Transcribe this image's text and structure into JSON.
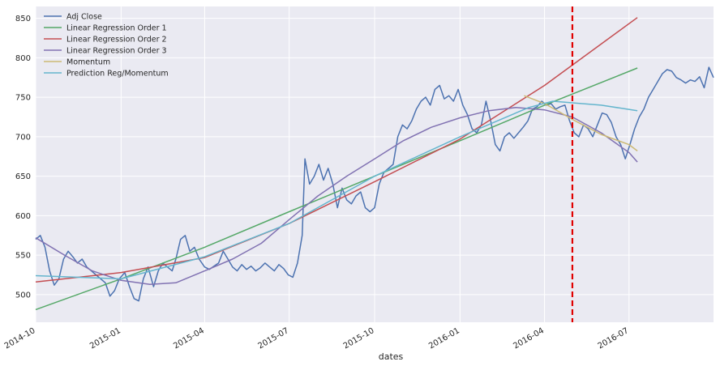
{
  "chart_data": {
    "type": "line",
    "title": "",
    "xlabel": "dates",
    "ylabel": "",
    "grid": true,
    "legend_position": "top-left",
    "xlim": [
      "2014-10-01",
      "2016-09-30"
    ],
    "ylim": [
      465,
      865
    ],
    "x_ticks": [
      {
        "date": "2014-10-01",
        "label": "2014-10"
      },
      {
        "date": "2015-01-01",
        "label": "2015-01"
      },
      {
        "date": "2015-04-01",
        "label": "2015-04"
      },
      {
        "date": "2015-07-01",
        "label": "2015-07"
      },
      {
        "date": "2015-10-01",
        "label": "2015-10"
      },
      {
        "date": "2016-01-01",
        "label": "2016-01"
      },
      {
        "date": "2016-04-01",
        "label": "2016-04"
      },
      {
        "date": "2016-07-01",
        "label": "2016-07"
      }
    ],
    "y_ticks": [
      500,
      550,
      600,
      650,
      700,
      750,
      800,
      850
    ],
    "vertical_line": {
      "date": "2016-05-01",
      "color": "#e00000",
      "style": "dashed"
    },
    "series": [
      {
        "name": "Adj Close",
        "color": "#4c72b0",
        "points": [
          [
            "2014-10-01",
            570
          ],
          [
            "2014-10-06",
            575
          ],
          [
            "2014-10-11",
            560
          ],
          [
            "2014-10-16",
            530
          ],
          [
            "2014-10-21",
            512
          ],
          [
            "2014-10-26",
            520
          ],
          [
            "2014-10-31",
            545
          ],
          [
            "2014-11-05",
            555
          ],
          [
            "2014-11-10",
            548
          ],
          [
            "2014-11-15",
            540
          ],
          [
            "2014-11-20",
            545
          ],
          [
            "2014-11-25",
            535
          ],
          [
            "2014-11-30",
            530
          ],
          [
            "2014-12-05",
            525
          ],
          [
            "2014-12-10",
            520
          ],
          [
            "2014-12-15",
            515
          ],
          [
            "2014-12-20",
            498
          ],
          [
            "2014-12-25",
            505
          ],
          [
            "2014-12-30",
            520
          ],
          [
            "2015-01-05",
            528
          ],
          [
            "2015-01-10",
            510
          ],
          [
            "2015-01-15",
            495
          ],
          [
            "2015-01-20",
            492
          ],
          [
            "2015-01-25",
            520
          ],
          [
            "2015-01-30",
            535
          ],
          [
            "2015-02-05",
            510
          ],
          [
            "2015-02-10",
            530
          ],
          [
            "2015-02-15",
            540
          ],
          [
            "2015-02-20",
            535
          ],
          [
            "2015-02-25",
            530
          ],
          [
            "2015-03-01",
            545
          ],
          [
            "2015-03-06",
            570
          ],
          [
            "2015-03-11",
            575
          ],
          [
            "2015-03-16",
            555
          ],
          [
            "2015-03-21",
            560
          ],
          [
            "2015-03-26",
            545
          ],
          [
            "2015-04-01",
            535
          ],
          [
            "2015-04-06",
            532
          ],
          [
            "2015-04-11",
            536
          ],
          [
            "2015-04-16",
            540
          ],
          [
            "2015-04-21",
            555
          ],
          [
            "2015-04-26",
            545
          ],
          [
            "2015-05-01",
            535
          ],
          [
            "2015-05-06",
            530
          ],
          [
            "2015-05-11",
            538
          ],
          [
            "2015-05-16",
            532
          ],
          [
            "2015-05-21",
            536
          ],
          [
            "2015-05-26",
            530
          ],
          [
            "2015-05-31",
            534
          ],
          [
            "2015-06-05",
            540
          ],
          [
            "2015-06-10",
            535
          ],
          [
            "2015-06-15",
            530
          ],
          [
            "2015-06-20",
            538
          ],
          [
            "2015-06-25",
            533
          ],
          [
            "2015-06-30",
            525
          ],
          [
            "2015-07-05",
            522
          ],
          [
            "2015-07-10",
            540
          ],
          [
            "2015-07-15",
            575
          ],
          [
            "2015-07-18",
            672
          ],
          [
            "2015-07-23",
            640
          ],
          [
            "2015-07-28",
            650
          ],
          [
            "2015-08-02",
            665
          ],
          [
            "2015-08-07",
            645
          ],
          [
            "2015-08-12",
            660
          ],
          [
            "2015-08-17",
            640
          ],
          [
            "2015-08-22",
            610
          ],
          [
            "2015-08-27",
            635
          ],
          [
            "2015-09-01",
            620
          ],
          [
            "2015-09-06",
            615
          ],
          [
            "2015-09-11",
            625
          ],
          [
            "2015-09-16",
            630
          ],
          [
            "2015-09-21",
            610
          ],
          [
            "2015-09-26",
            605
          ],
          [
            "2015-10-01",
            610
          ],
          [
            "2015-10-06",
            640
          ],
          [
            "2015-10-11",
            655
          ],
          [
            "2015-10-16",
            660
          ],
          [
            "2015-10-21",
            665
          ],
          [
            "2015-10-26",
            700
          ],
          [
            "2015-10-31",
            715
          ],
          [
            "2015-11-05",
            710
          ],
          [
            "2015-11-10",
            720
          ],
          [
            "2015-11-15",
            735
          ],
          [
            "2015-11-20",
            745
          ],
          [
            "2015-11-25",
            750
          ],
          [
            "2015-11-30",
            740
          ],
          [
            "2015-12-05",
            760
          ],
          [
            "2015-12-10",
            765
          ],
          [
            "2015-12-15",
            748
          ],
          [
            "2015-12-20",
            752
          ],
          [
            "2015-12-25",
            745
          ],
          [
            "2015-12-30",
            760
          ],
          [
            "2016-01-04",
            740
          ],
          [
            "2016-01-09",
            728
          ],
          [
            "2016-01-14",
            710
          ],
          [
            "2016-01-19",
            705
          ],
          [
            "2016-01-24",
            715
          ],
          [
            "2016-01-29",
            745
          ],
          [
            "2016-02-03",
            720
          ],
          [
            "2016-02-08",
            690
          ],
          [
            "2016-02-13",
            682
          ],
          [
            "2016-02-18",
            700
          ],
          [
            "2016-02-23",
            705
          ],
          [
            "2016-02-28",
            698
          ],
          [
            "2016-03-04",
            705
          ],
          [
            "2016-03-09",
            712
          ],
          [
            "2016-03-14",
            720
          ],
          [
            "2016-03-19",
            735
          ],
          [
            "2016-03-24",
            738
          ],
          [
            "2016-03-29",
            745
          ],
          [
            "2016-04-03",
            740
          ],
          [
            "2016-04-08",
            742
          ],
          [
            "2016-04-13",
            735
          ],
          [
            "2016-04-18",
            738
          ],
          [
            "2016-04-23",
            740
          ],
          [
            "2016-04-28",
            720
          ],
          [
            "2016-05-03",
            705
          ],
          [
            "2016-05-08",
            700
          ],
          [
            "2016-05-13",
            715
          ],
          [
            "2016-05-18",
            710
          ],
          [
            "2016-05-23",
            700
          ],
          [
            "2016-05-28",
            715
          ],
          [
            "2016-06-02",
            730
          ],
          [
            "2016-06-07",
            728
          ],
          [
            "2016-06-12",
            718
          ],
          [
            "2016-06-17",
            700
          ],
          [
            "2016-06-22",
            690
          ],
          [
            "2016-06-27",
            672
          ],
          [
            "2016-07-02",
            690
          ],
          [
            "2016-07-07",
            710
          ],
          [
            "2016-07-12",
            725
          ],
          [
            "2016-07-17",
            735
          ],
          [
            "2016-07-22",
            750
          ],
          [
            "2016-07-27",
            760
          ],
          [
            "2016-08-01",
            770
          ],
          [
            "2016-08-06",
            780
          ],
          [
            "2016-08-11",
            785
          ],
          [
            "2016-08-16",
            783
          ],
          [
            "2016-08-21",
            775
          ],
          [
            "2016-08-26",
            772
          ],
          [
            "2016-08-31",
            768
          ],
          [
            "2016-09-05",
            772
          ],
          [
            "2016-09-10",
            770
          ],
          [
            "2016-09-15",
            776
          ],
          [
            "2016-09-20",
            762
          ],
          [
            "2016-09-25",
            788
          ],
          [
            "2016-09-30",
            775
          ]
        ]
      },
      {
        "name": "Linear Regression Order 1",
        "color": "#55a868",
        "points": [
          [
            "2014-10-01",
            481
          ],
          [
            "2015-01-01",
            520
          ],
          [
            "2015-04-01",
            560
          ],
          [
            "2015-07-01",
            605
          ],
          [
            "2015-10-01",
            650
          ],
          [
            "2016-01-01",
            695
          ],
          [
            "2016-04-01",
            740
          ],
          [
            "2016-07-10",
            787
          ]
        ]
      },
      {
        "name": "Linear Regression Order 2",
        "color": "#c44e52",
        "points": [
          [
            "2014-10-01",
            516
          ],
          [
            "2015-01-01",
            528
          ],
          [
            "2015-04-01",
            547
          ],
          [
            "2015-07-01",
            590
          ],
          [
            "2015-10-01",
            643
          ],
          [
            "2016-01-01",
            697
          ],
          [
            "2016-04-01",
            765
          ],
          [
            "2016-07-10",
            851
          ]
        ]
      },
      {
        "name": "Linear Regression Order 3",
        "color": "#8172b2",
        "points": [
          [
            "2014-10-01",
            572
          ],
          [
            "2014-11-01",
            550
          ],
          [
            "2014-12-01",
            530
          ],
          [
            "2015-01-01",
            518
          ],
          [
            "2015-02-01",
            513
          ],
          [
            "2015-03-01",
            515
          ],
          [
            "2015-04-01",
            530
          ],
          [
            "2015-05-01",
            545
          ],
          [
            "2015-06-01",
            565
          ],
          [
            "2015-07-01",
            595
          ],
          [
            "2015-08-01",
            625
          ],
          [
            "2015-09-01",
            650
          ],
          [
            "2015-10-01",
            672
          ],
          [
            "2015-11-01",
            695
          ],
          [
            "2015-12-01",
            712
          ],
          [
            "2016-01-01",
            724
          ],
          [
            "2016-02-01",
            733
          ],
          [
            "2016-03-01",
            737
          ],
          [
            "2016-04-01",
            734
          ],
          [
            "2016-05-01",
            725
          ],
          [
            "2016-06-01",
            705
          ],
          [
            "2016-07-01",
            680
          ],
          [
            "2016-07-10",
            668
          ]
        ]
      },
      {
        "name": "Momentum",
        "color": "#ccb974",
        "points": [
          [
            "2016-03-10",
            752
          ],
          [
            "2016-04-01",
            742
          ],
          [
            "2016-05-01",
            722
          ],
          [
            "2016-06-01",
            703
          ],
          [
            "2016-07-01",
            690
          ],
          [
            "2016-07-10",
            682
          ]
        ]
      },
      {
        "name": "Prediction Reg/Momentum",
        "color": "#64b5cd",
        "points": [
          [
            "2014-10-01",
            524
          ],
          [
            "2015-01-01",
            520
          ],
          [
            "2015-04-01",
            548
          ],
          [
            "2015-07-01",
            590
          ],
          [
            "2015-10-01",
            650
          ],
          [
            "2016-01-01",
            700
          ],
          [
            "2016-03-15",
            737
          ],
          [
            "2016-04-10",
            745
          ],
          [
            "2016-05-01",
            743
          ],
          [
            "2016-06-01",
            740
          ],
          [
            "2016-07-10",
            733
          ]
        ]
      }
    ]
  }
}
